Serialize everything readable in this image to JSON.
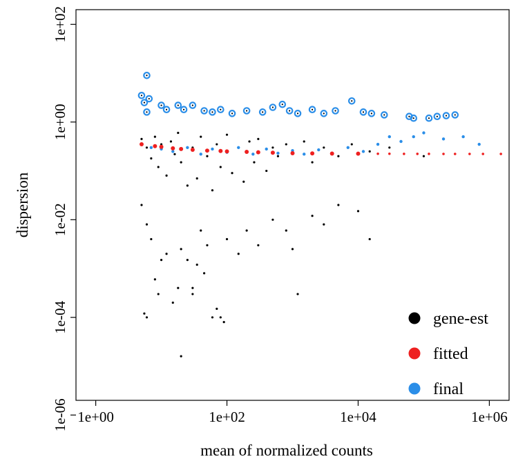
{
  "chart_data": {
    "type": "scatter",
    "title": "",
    "xlabel": "mean of normalized counts",
    "ylabel": "dispersion",
    "x_scale": "log10",
    "y_scale": "log10",
    "xlim": [
      0.5,
      2000000
    ],
    "ylim": [
      2e-06,
      200
    ],
    "grid": false,
    "legend_position": "bottom-right",
    "x_ticks": [
      {
        "value": 1,
        "label": "1e+00"
      },
      {
        "value": 100,
        "label": "1e+02"
      },
      {
        "value": 10000,
        "label": "1e+04"
      },
      {
        "value": 1000000,
        "label": "1e+06"
      }
    ],
    "y_ticks": [
      {
        "value": 1e-06,
        "label": "1e-06"
      },
      {
        "value": 0.0001,
        "label": "1e-04"
      },
      {
        "value": 0.01,
        "label": "1e-02"
      },
      {
        "value": 1,
        "label": "1e+00"
      },
      {
        "value": 100,
        "label": "1e+02"
      }
    ],
    "series": [
      {
        "name": "gene-est",
        "color": "#000000",
        "points": [
          [
            5,
            0.45
          ],
          [
            6,
            0.3
          ],
          [
            7,
            0.18
          ],
          [
            8,
            0.5
          ],
          [
            9,
            0.12
          ],
          [
            10,
            0.35
          ],
          [
            12,
            0.08
          ],
          [
            14,
            0.4
          ],
          [
            16,
            0.22
          ],
          [
            18,
            0.6
          ],
          [
            20,
            0.15
          ],
          [
            25,
            0.05
          ],
          [
            30,
            0.3
          ],
          [
            35,
            0.07
          ],
          [
            40,
            0.5
          ],
          [
            50,
            0.2
          ],
          [
            60,
            0.04
          ],
          [
            70,
            0.35
          ],
          [
            80,
            0.12
          ],
          [
            100,
            0.55
          ],
          [
            120,
            0.09
          ],
          [
            150,
            0.3
          ],
          [
            180,
            0.06
          ],
          [
            220,
            0.4
          ],
          [
            260,
            0.15
          ],
          [
            300,
            0.45
          ],
          [
            400,
            0.1
          ],
          [
            500,
            0.3
          ],
          [
            600,
            0.2
          ],
          [
            800,
            0.35
          ],
          [
            1000,
            0.25
          ],
          [
            1500,
            0.4
          ],
          [
            2000,
            0.15
          ],
          [
            3000,
            0.3
          ],
          [
            5000,
            0.2
          ],
          [
            8000,
            0.35
          ],
          [
            15000,
            0.25
          ],
          [
            30000,
            0.3
          ],
          [
            100000,
            0.2
          ],
          [
            5,
            0.02
          ],
          [
            6,
            0.008
          ],
          [
            7,
            0.004
          ],
          [
            8,
            0.0006
          ],
          [
            9,
            0.0003
          ],
          [
            10,
            0.0015
          ],
          [
            12,
            0.002
          ],
          [
            15,
            0.0002
          ],
          [
            18,
            0.0004
          ],
          [
            20,
            0.0025
          ],
          [
            25,
            0.0015
          ],
          [
            30,
            0.0003
          ],
          [
            35,
            0.0012
          ],
          [
            40,
            0.006
          ],
          [
            50,
            0.003
          ],
          [
            60,
            0.0001
          ],
          [
            70,
            0.00015
          ],
          [
            80,
            0.0001
          ],
          [
            90,
            8e-05
          ],
          [
            5.5,
            0.00012
          ],
          [
            6,
            0.0001
          ],
          [
            20,
            1.6e-05
          ],
          [
            30,
            0.0004
          ],
          [
            45,
            0.0008
          ],
          [
            100,
            0.004
          ],
          [
            150,
            0.002
          ],
          [
            200,
            0.006
          ],
          [
            300,
            0.003
          ],
          [
            500,
            0.01
          ],
          [
            800,
            0.006
          ],
          [
            1000,
            0.0025
          ],
          [
            1200,
            0.0003
          ],
          [
            2000,
            0.012
          ],
          [
            3000,
            0.008
          ],
          [
            5000,
            0.02
          ],
          [
            10000,
            0.015
          ],
          [
            15000,
            0.004
          ]
        ]
      },
      {
        "name": "fitted",
        "color": "#ee2020",
        "points": [
          [
            5,
            0.35
          ],
          [
            8,
            0.32
          ],
          [
            10,
            0.31
          ],
          [
            15,
            0.29
          ],
          [
            20,
            0.28
          ],
          [
            30,
            0.27
          ],
          [
            50,
            0.26
          ],
          [
            80,
            0.255
          ],
          [
            100,
            0.25
          ],
          [
            200,
            0.245
          ],
          [
            300,
            0.24
          ],
          [
            500,
            0.235
          ],
          [
            1000,
            0.23
          ],
          [
            2000,
            0.228
          ],
          [
            4000,
            0.226
          ],
          [
            10000,
            0.225
          ],
          [
            20000,
            0.224
          ],
          [
            30000,
            0.224
          ],
          [
            50000,
            0.223
          ],
          [
            80000,
            0.223
          ],
          [
            120000,
            0.223
          ],
          [
            200000,
            0.222
          ],
          [
            300000,
            0.222
          ],
          [
            500000,
            0.222
          ],
          [
            800000,
            0.222
          ],
          [
            1500000,
            0.222
          ]
        ]
      },
      {
        "name": "final",
        "color": "#2b8ee8",
        "points": [
          [
            6,
            9
          ],
          [
            5,
            3.5
          ],
          [
            5.5,
            2.5
          ],
          [
            6.5,
            3
          ],
          [
            6,
            1.6
          ],
          [
            10,
            2.2
          ],
          [
            12,
            1.8
          ],
          [
            18,
            2.2
          ],
          [
            22,
            1.8
          ],
          [
            30,
            2.2
          ],
          [
            45,
            1.7
          ],
          [
            60,
            1.6
          ],
          [
            80,
            1.8
          ],
          [
            120,
            1.5
          ],
          [
            200,
            1.7
          ],
          [
            350,
            1.6
          ],
          [
            500,
            2
          ],
          [
            700,
            2.3
          ],
          [
            900,
            1.7
          ],
          [
            1200,
            1.5
          ],
          [
            2000,
            1.8
          ],
          [
            3000,
            1.5
          ],
          [
            4500,
            1.7
          ],
          [
            8000,
            2.7
          ],
          [
            12000,
            1.6
          ],
          [
            16000,
            1.5
          ],
          [
            25000,
            1.4
          ],
          [
            60000,
            1.3
          ],
          [
            70000,
            1.2
          ],
          [
            120000,
            1.2
          ],
          [
            160000,
            1.3
          ],
          [
            220000,
            1.35
          ],
          [
            300000,
            1.4
          ],
          [
            5,
            0.35
          ],
          [
            7,
            0.3
          ],
          [
            10,
            0.28
          ],
          [
            15,
            0.25
          ],
          [
            25,
            0.3
          ],
          [
            40,
            0.22
          ],
          [
            60,
            0.28
          ],
          [
            100,
            0.24
          ],
          [
            150,
            0.3
          ],
          [
            250,
            0.22
          ],
          [
            400,
            0.28
          ],
          [
            600,
            0.23
          ],
          [
            1000,
            0.26
          ],
          [
            1500,
            0.22
          ],
          [
            2500,
            0.27
          ],
          [
            4000,
            0.23
          ],
          [
            7000,
            0.3
          ],
          [
            12000,
            0.25
          ],
          [
            20000,
            0.35
          ],
          [
            30000,
            0.5
          ],
          [
            45000,
            0.4
          ],
          [
            70000,
            0.5
          ],
          [
            100000,
            0.6
          ],
          [
            200000,
            0.45
          ],
          [
            400000,
            0.5
          ],
          [
            700000,
            0.35
          ]
        ]
      }
    ]
  }
}
